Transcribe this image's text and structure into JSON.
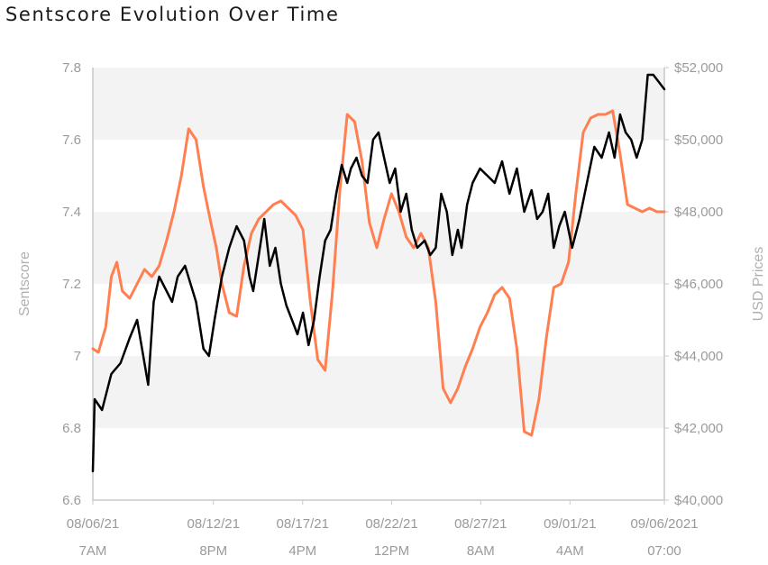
{
  "chart_data": {
    "type": "line",
    "title": "Sentscore Evolution Over Time",
    "ylabel": "Sentscore",
    "y2label": "USD Prices",
    "ylim": [
      6.6,
      7.8
    ],
    "y2lim": [
      40000,
      52000
    ],
    "yticks": [
      "6.6",
      "6.8",
      "7",
      "7.2",
      "7.4",
      "7.6",
      "7.8"
    ],
    "y2ticks": [
      "$40,000",
      "$42,000",
      "$44,000",
      "$46,000",
      "$48,000",
      "$50,000",
      "$52,000"
    ],
    "xlim": [
      0,
      31
    ],
    "xticks": [
      {
        "x": 0,
        "date": "08/06/21",
        "time": "7AM"
      },
      {
        "x": 6.54,
        "date": "08/12/21",
        "time": "8PM"
      },
      {
        "x": 11.38,
        "date": "08/17/21",
        "time": "4PM"
      },
      {
        "x": 16.21,
        "date": "08/22/21",
        "time": "12PM"
      },
      {
        "x": 21.04,
        "date": "08/27/21",
        "time": "8AM"
      },
      {
        "x": 25.88,
        "date": "09/01/21",
        "time": "4AM"
      },
      {
        "x": 31,
        "date": "09/06/2021",
        "time": "07:00"
      }
    ],
    "grid": "alternating-bands",
    "series": [
      {
        "name": "Sentscore",
        "axis": "left",
        "color": "#000000",
        "x": [
          0,
          0.1,
          0.5,
          1.0,
          1.5,
          2.0,
          2.4,
          2.8,
          3.0,
          3.3,
          3.6,
          4.0,
          4.3,
          4.6,
          5.0,
          5.3,
          5.6,
          6.0,
          6.3,
          6.6,
          7.0,
          7.4,
          7.8,
          8.2,
          8.5,
          8.7,
          9.0,
          9.3,
          9.6,
          9.9,
          10.2,
          10.5,
          10.8,
          11.1,
          11.4,
          11.7,
          12.0,
          12.3,
          12.6,
          12.9,
          13.2,
          13.5,
          13.8,
          14.0,
          14.3,
          14.6,
          14.9,
          15.2,
          15.5,
          15.8,
          16.1,
          16.4,
          16.7,
          17.0,
          17.3,
          17.6,
          18.0,
          18.3,
          18.6,
          18.9,
          19.2,
          19.5,
          19.8,
          20.0,
          20.3,
          20.6,
          21.0,
          21.4,
          21.8,
          22.2,
          22.6,
          23.0,
          23.4,
          23.8,
          24.1,
          24.4,
          24.7,
          25.0,
          25.3,
          25.6,
          26.0,
          26.4,
          26.8,
          27.2,
          27.6,
          28.0,
          28.3,
          28.6,
          28.9,
          29.2,
          29.5,
          29.8,
          30.1,
          30.4,
          30.7,
          31.0
        ],
        "values": [
          6.68,
          6.88,
          6.85,
          6.95,
          6.98,
          7.05,
          7.1,
          6.98,
          6.92,
          7.15,
          7.22,
          7.18,
          7.15,
          7.22,
          7.25,
          7.2,
          7.15,
          7.02,
          7.0,
          7.1,
          7.22,
          7.3,
          7.36,
          7.32,
          7.22,
          7.18,
          7.28,
          7.38,
          7.25,
          7.3,
          7.2,
          7.14,
          7.1,
          7.06,
          7.12,
          7.03,
          7.1,
          7.22,
          7.32,
          7.35,
          7.45,
          7.53,
          7.48,
          7.52,
          7.55,
          7.5,
          7.48,
          7.6,
          7.62,
          7.55,
          7.48,
          7.52,
          7.4,
          7.45,
          7.35,
          7.3,
          7.32,
          7.28,
          7.3,
          7.45,
          7.4,
          7.28,
          7.35,
          7.3,
          7.42,
          7.48,
          7.52,
          7.5,
          7.48,
          7.54,
          7.45,
          7.52,
          7.4,
          7.46,
          7.38,
          7.4,
          7.45,
          7.3,
          7.36,
          7.4,
          7.3,
          7.38,
          7.48,
          7.58,
          7.55,
          7.62,
          7.55,
          7.67,
          7.62,
          7.6,
          7.55,
          7.6,
          7.78,
          7.78,
          7.76,
          7.74
        ]
      },
      {
        "name": "USD Prices",
        "axis": "right",
        "color": "#FF7F50",
        "x": [
          0,
          0.3,
          0.7,
          1.0,
          1.3,
          1.6,
          2.0,
          2.4,
          2.8,
          3.2,
          3.6,
          4.0,
          4.4,
          4.8,
          5.2,
          5.6,
          6.0,
          6.4,
          6.7,
          7.0,
          7.4,
          7.8,
          8.2,
          8.6,
          9.0,
          9.4,
          9.8,
          10.2,
          10.6,
          11.0,
          11.4,
          11.8,
          12.2,
          12.6,
          13.0,
          13.4,
          13.8,
          14.2,
          14.6,
          15.0,
          15.4,
          15.8,
          16.2,
          16.6,
          17.0,
          17.4,
          17.8,
          18.2,
          18.6,
          19.0,
          19.4,
          19.8,
          20.2,
          20.6,
          21.0,
          21.4,
          21.8,
          22.2,
          22.6,
          23.0,
          23.4,
          23.8,
          24.2,
          24.6,
          25.0,
          25.4,
          25.8,
          26.2,
          26.6,
          27.0,
          27.4,
          27.8,
          28.2,
          28.6,
          29.0,
          29.4,
          29.8,
          30.2,
          30.6,
          31.0
        ],
        "values": [
          44200,
          44100,
          44800,
          46200,
          46600,
          45800,
          45600,
          46000,
          46400,
          46200,
          46500,
          47200,
          48000,
          49000,
          50300,
          50000,
          48700,
          47700,
          47000,
          46000,
          45200,
          45100,
          46500,
          47400,
          47800,
          48000,
          48200,
          48300,
          48100,
          47900,
          47500,
          45500,
          43900,
          43600,
          45800,
          48600,
          50700,
          50500,
          49400,
          47700,
          47000,
          47800,
          48500,
          48000,
          47300,
          47000,
          47400,
          47000,
          45500,
          43100,
          42700,
          43100,
          43700,
          44200,
          44800,
          45200,
          45700,
          45900,
          45600,
          44200,
          41900,
          41800,
          42800,
          44500,
          45900,
          46000,
          46600,
          48500,
          50200,
          50600,
          50700,
          50700,
          50800,
          49600,
          48200,
          48100,
          48000,
          48100,
          48000,
          48000
        ]
      }
    ]
  }
}
